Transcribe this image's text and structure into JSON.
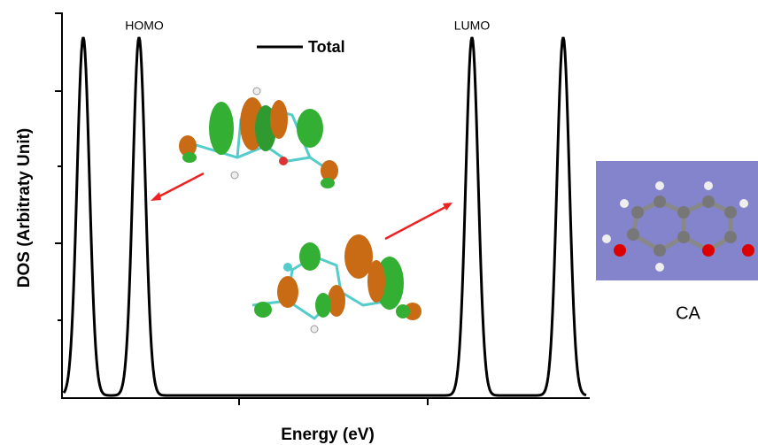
{
  "chart_data": {
    "type": "line",
    "xlabel": "Energy (eV)",
    "ylabel": "DOS (Arbitraty Unit)",
    "series": [
      {
        "name": "Total",
        "color": "#000000"
      }
    ],
    "annotations": [
      "HOMO",
      "LUMO"
    ],
    "molecule_label": "CA"
  }
}
